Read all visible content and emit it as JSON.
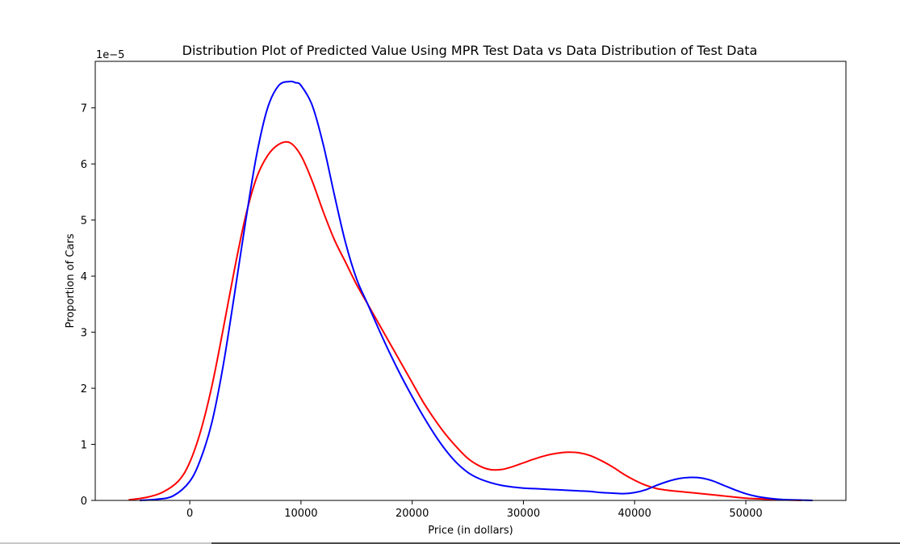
{
  "chart_data": {
    "type": "line",
    "title": "Distribution  Plot of  Predicted Value Using MPR Test Data vs Data Distribution of Test Data",
    "xlabel": "Price (in dollars)",
    "ylabel": "Proportion of Cars",
    "y_offset_text": "1e−5",
    "y_scale_factor": 1e-05,
    "xlim": [
      -8500,
      59000
    ],
    "ylim": [
      0,
      7.83
    ],
    "x_ticks": [
      0,
      10000,
      20000,
      30000,
      40000,
      50000
    ],
    "x_tick_labels": [
      "0",
      "10000",
      "20000",
      "30000",
      "40000",
      "50000"
    ],
    "y_ticks": [
      0,
      1,
      2,
      3,
      4,
      5,
      6,
      7
    ],
    "y_tick_labels": [
      "0",
      "1",
      "2",
      "3",
      "4",
      "5",
      "6",
      "7"
    ],
    "grid": false,
    "series": [
      {
        "color": "#ff0000",
        "x": [
          -5500,
          -4000,
          -2500,
          -1000,
          0,
          1000,
          2000,
          3000,
          4000,
          5000,
          6000,
          7000,
          8000,
          9000,
          10000,
          11000,
          12000,
          13000,
          14000,
          15000,
          16000,
          17000,
          18000,
          19000,
          20000,
          21000,
          22000,
          23000,
          24000,
          25000,
          26000,
          27000,
          28000,
          29000,
          30000,
          31000,
          32000,
          33000,
          34000,
          35000,
          36000,
          37000,
          38000,
          39000,
          40000,
          41000,
          42000,
          43000,
          44000,
          45000,
          46000,
          47000,
          48000,
          49000,
          50000,
          51000,
          52000,
          53000,
          54000,
          55000
        ],
        "values": [
          0.01,
          0.05,
          0.14,
          0.35,
          0.68,
          1.25,
          2.05,
          3.05,
          4.1,
          5.05,
          5.75,
          6.15,
          6.35,
          6.38,
          6.15,
          5.7,
          5.15,
          4.65,
          4.25,
          3.85,
          3.5,
          3.15,
          2.8,
          2.45,
          2.1,
          1.75,
          1.45,
          1.18,
          0.95,
          0.75,
          0.62,
          0.55,
          0.55,
          0.6,
          0.67,
          0.74,
          0.8,
          0.84,
          0.86,
          0.85,
          0.8,
          0.71,
          0.6,
          0.47,
          0.36,
          0.27,
          0.21,
          0.18,
          0.16,
          0.14,
          0.12,
          0.1,
          0.08,
          0.06,
          0.04,
          0.03,
          0.02,
          0.01,
          0.005,
          0.0
        ]
      },
      {
        "color": "#0000ff",
        "x": [
          -4500,
          -3000,
          -1500,
          0,
          1000,
          2000,
          3000,
          4000,
          5000,
          6000,
          7000,
          8000,
          9000,
          9500,
          10000,
          11000,
          12000,
          13000,
          14000,
          15000,
          16000,
          17000,
          18000,
          19000,
          20000,
          21000,
          22000,
          23000,
          24000,
          25000,
          26000,
          27000,
          28000,
          29000,
          30000,
          31000,
          32000,
          33000,
          34000,
          35000,
          36000,
          37000,
          38000,
          39000,
          40000,
          41000,
          42000,
          43000,
          44000,
          45000,
          46000,
          47000,
          48000,
          49000,
          50000,
          51000,
          52000,
          53000,
          54000,
          55000,
          56000
        ],
        "values": [
          0.0,
          0.02,
          0.08,
          0.34,
          0.75,
          1.4,
          2.4,
          3.65,
          4.95,
          6.15,
          7.0,
          7.4,
          7.47,
          7.45,
          7.4,
          7.05,
          6.35,
          5.45,
          4.6,
          3.95,
          3.5,
          3.05,
          2.62,
          2.22,
          1.85,
          1.5,
          1.18,
          0.9,
          0.67,
          0.5,
          0.39,
          0.32,
          0.27,
          0.24,
          0.22,
          0.21,
          0.2,
          0.19,
          0.18,
          0.17,
          0.16,
          0.14,
          0.13,
          0.12,
          0.14,
          0.19,
          0.27,
          0.34,
          0.39,
          0.41,
          0.4,
          0.35,
          0.27,
          0.19,
          0.12,
          0.07,
          0.04,
          0.02,
          0.01,
          0.005,
          0.0
        ]
      }
    ]
  }
}
